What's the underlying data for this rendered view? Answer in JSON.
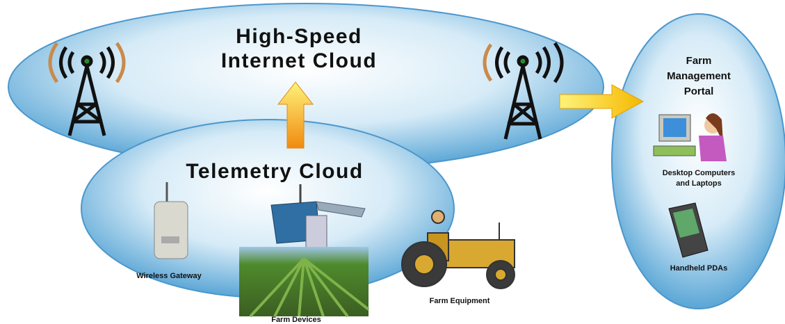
{
  "internet_cloud": {
    "lines": [
      "High-Speed",
      "Internet Cloud"
    ]
  },
  "telemetry_cloud": {
    "label": "Telemetry Cloud"
  },
  "devices": {
    "wireless_gateway": "Wireless Gateway",
    "farm_devices": "Farm Devices",
    "farm_equipment": "Farm Equipment"
  },
  "portal": {
    "title_lines": [
      "Farm",
      "Management",
      "Portal"
    ],
    "desktop_lines": [
      "Desktop Computers",
      "and Laptops"
    ],
    "handheld": "Handheld PDAs"
  }
}
